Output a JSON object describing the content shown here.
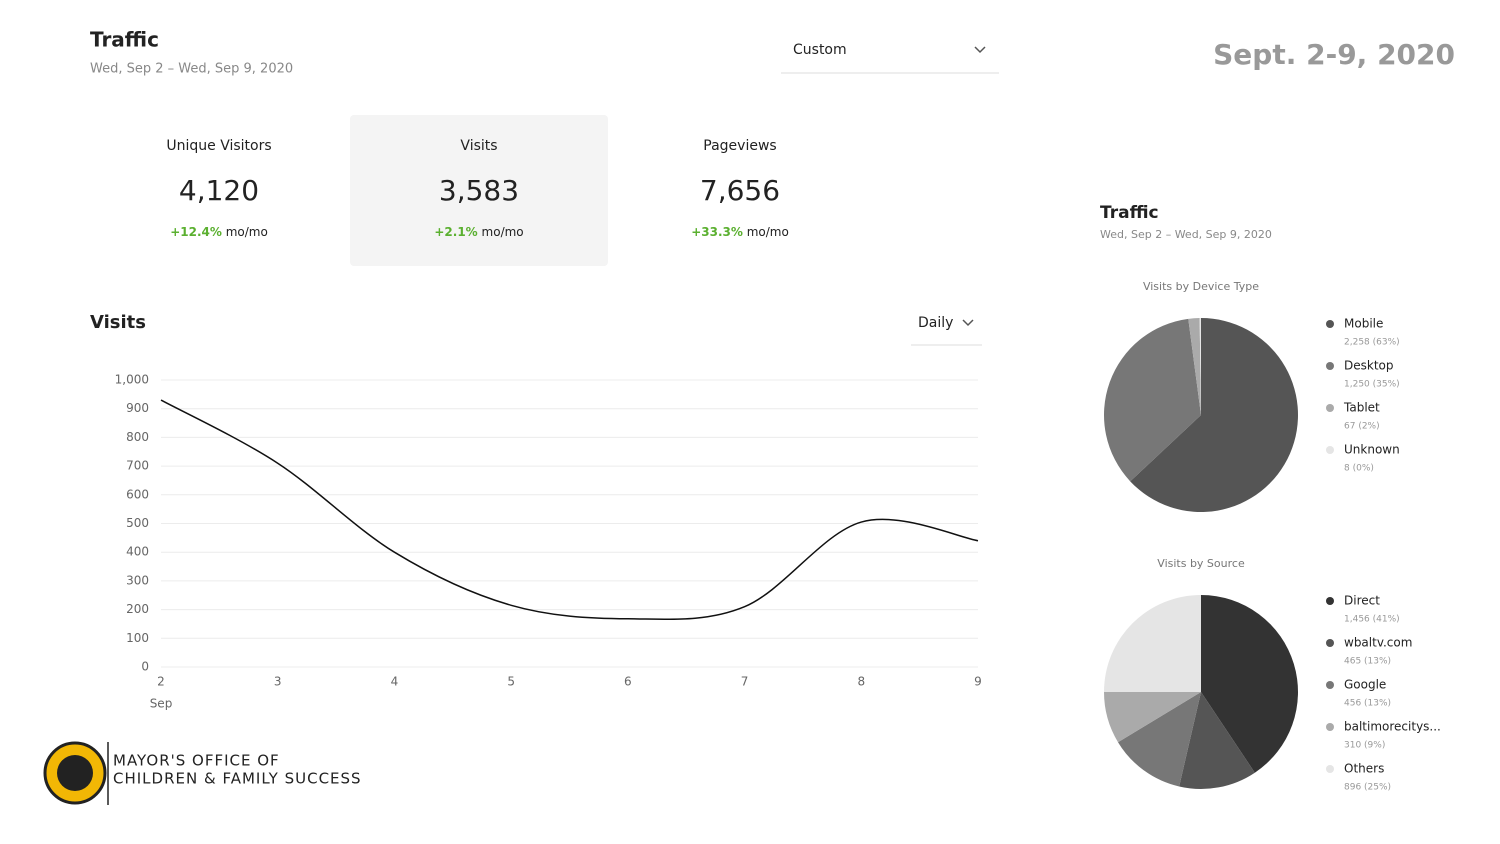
{
  "header": {
    "title": "Traffic",
    "subtitle": "Wed, Sep 2 – Wed, Sep 9, 2020",
    "range_select": "Custom",
    "date_banner": "Sept. 2-9, 2020"
  },
  "stats": [
    {
      "label": "Unique Visitors",
      "value": "4,120",
      "change": "+12.4%",
      "unit": "mo/mo"
    },
    {
      "label": "Visits",
      "value": "3,583",
      "change": "+2.1%",
      "unit": "mo/mo"
    },
    {
      "label": "Pageviews",
      "value": "7,656",
      "change": "+33.3%",
      "unit": "mo/mo"
    }
  ],
  "side": {
    "title": "Traffic",
    "subtitle": "Wed, Sep 2 – Wed, Sep 9, 2020"
  },
  "logo": {
    "line1": "MAYOR'S OFFICE OF",
    "line2": "CHILDREN & FAMILY SUCCESS"
  },
  "chart_data": [
    {
      "type": "line",
      "title": "Visits",
      "interval": "Daily",
      "x": [
        2,
        3,
        4,
        5,
        6,
        7,
        8,
        9
      ],
      "x_sublabel": "Sep",
      "values": [
        930,
        710,
        400,
        215,
        168,
        210,
        505,
        440
      ],
      "color": "#111111",
      "xlim": [
        2,
        9
      ],
      "xticks": [
        2,
        3,
        4,
        5,
        6,
        7,
        8,
        9
      ],
      "ylim": [
        0,
        1000
      ],
      "yticks": [
        0,
        100,
        200,
        300,
        400,
        500,
        600,
        700,
        800,
        900,
        {
          "value": 1000,
          "label": "1,000"
        }
      ],
      "grid": true
    },
    {
      "type": "pie",
      "title": "Visits by Device Type",
      "categories": [
        "Mobile",
        "Desktop",
        "Tablet",
        "Unknown"
      ],
      "values": [
        2258,
        1250,
        67,
        8
      ],
      "value_labels": [
        "2,258 (63%)",
        "1,250 (35%)",
        "67 (2%)",
        "8 (0%)"
      ],
      "colors": [
        "#555555",
        "#777777",
        "#aaaaaa",
        "#e5e5e5"
      ]
    },
    {
      "type": "pie",
      "title": "Visits by Source",
      "categories": [
        "Direct",
        "wbaltv.com",
        "Google",
        "baltimorecitys...",
        "Others"
      ],
      "values": [
        1456,
        465,
        456,
        310,
        896
      ],
      "value_labels": [
        "1,456 (41%)",
        "465 (13%)",
        "456 (13%)",
        "310 (9%)",
        "896 (25%)"
      ],
      "colors": [
        "#333333",
        "#555555",
        "#777777",
        "#aaaaaa",
        "#e5e5e5"
      ]
    }
  ]
}
